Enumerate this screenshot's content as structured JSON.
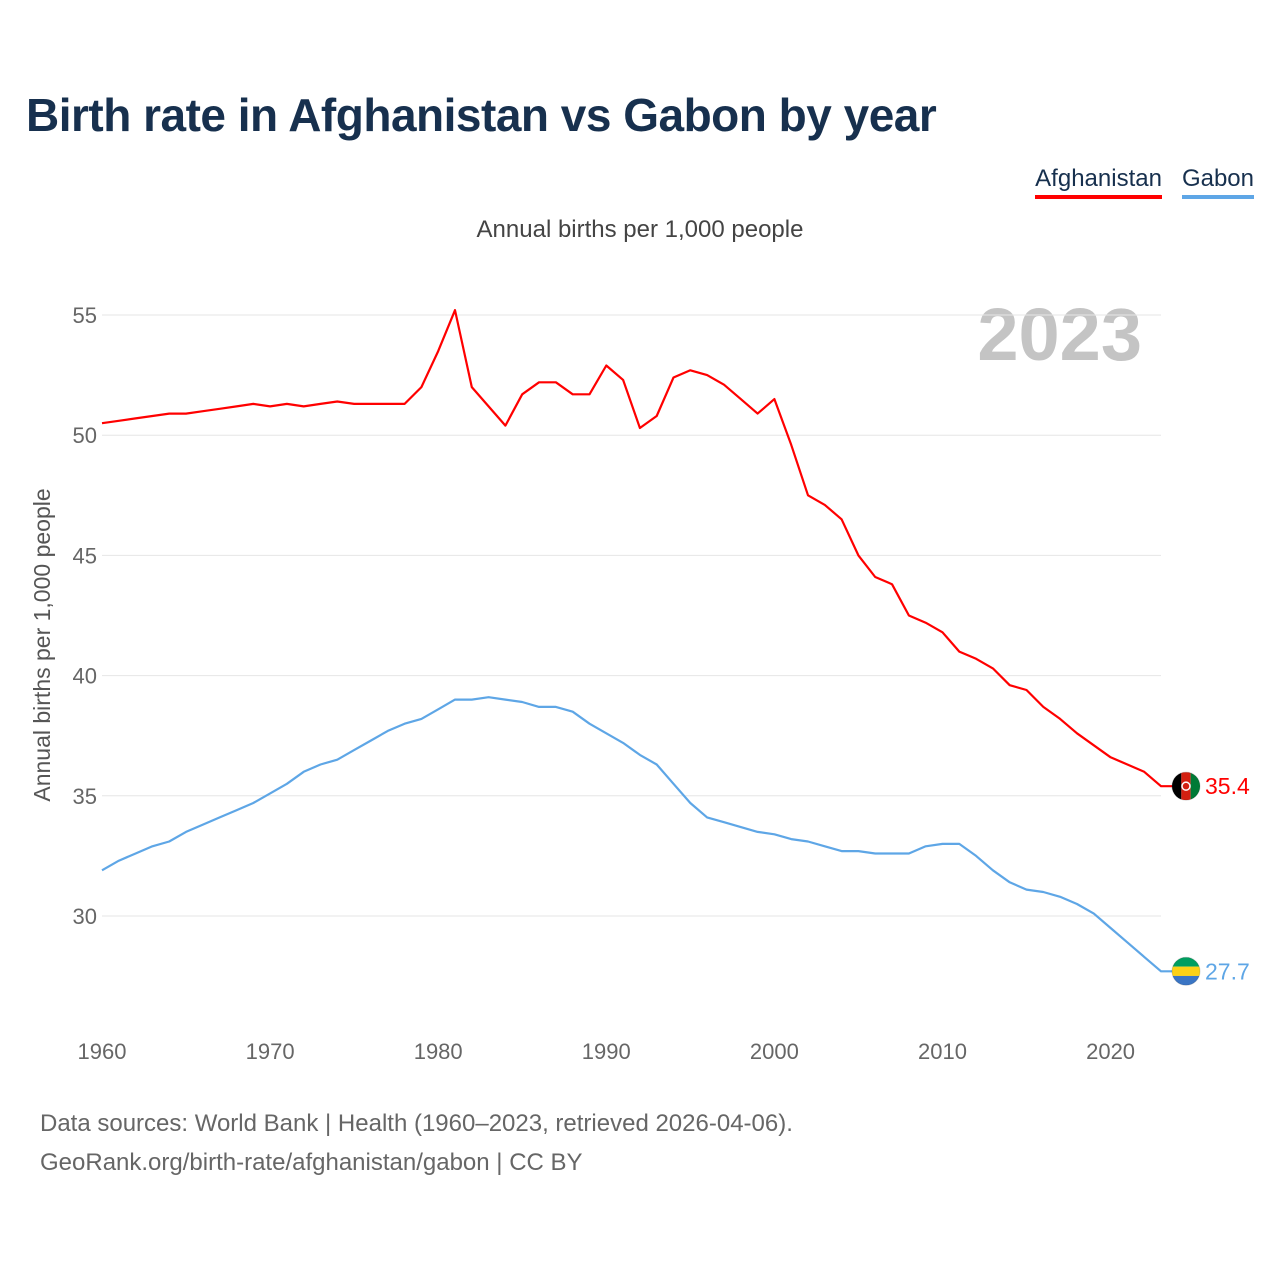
{
  "title": "Birth rate in Afghanistan vs Gabon by year",
  "subtitle": "Annual births per 1,000 people",
  "year_watermark": "2023",
  "legend": [
    {
      "name": "Afghanistan",
      "color": "#ff0000"
    },
    {
      "name": "Gabon",
      "color": "#5ea6e6"
    }
  ],
  "footer": {
    "line1": "Data sources: World Bank | Health (1960–2023, retrieved 2026-04-06).",
    "line2": "GeoRank.org/birth-rate/afghanistan/gabon | CC BY"
  },
  "chart_data": {
    "type": "line",
    "title": "Birth rate in Afghanistan vs Gabon by year",
    "ylabel": "Annual births per 1,000 people",
    "xlabel": "",
    "xlim": [
      1960,
      2023
    ],
    "ylim": [
      26.5,
      57
    ],
    "xticks": [
      1960,
      1970,
      1980,
      1990,
      2000,
      2010,
      2020
    ],
    "yticks": [
      30,
      35,
      40,
      45,
      50,
      55
    ],
    "grid": true,
    "x": [
      1960,
      1961,
      1962,
      1963,
      1964,
      1965,
      1966,
      1967,
      1968,
      1969,
      1970,
      1971,
      1972,
      1973,
      1974,
      1975,
      1976,
      1977,
      1978,
      1979,
      1980,
      1981,
      1982,
      1983,
      1984,
      1985,
      1986,
      1987,
      1988,
      1989,
      1990,
      1991,
      1992,
      1993,
      1994,
      1995,
      1996,
      1997,
      1998,
      1999,
      2000,
      2001,
      2002,
      2003,
      2004,
      2005,
      2006,
      2007,
      2008,
      2009,
      2010,
      2011,
      2012,
      2013,
      2014,
      2015,
      2016,
      2017,
      2018,
      2019,
      2020,
      2021,
      2022,
      2023
    ],
    "series": [
      {
        "name": "Afghanistan",
        "color": "#ff0000",
        "end_label": "35.4",
        "values": [
          50.5,
          50.6,
          50.7,
          50.8,
          50.9,
          50.9,
          51.0,
          51.1,
          51.2,
          51.3,
          51.2,
          51.3,
          51.2,
          51.3,
          51.4,
          51.3,
          51.3,
          51.3,
          51.3,
          52.0,
          53.5,
          55.2,
          52.0,
          51.2,
          50.4,
          51.7,
          52.2,
          52.2,
          51.7,
          51.7,
          52.9,
          52.3,
          50.3,
          50.8,
          52.4,
          52.7,
          52.5,
          52.1,
          51.5,
          50.9,
          51.5,
          49.6,
          47.5,
          47.1,
          46.5,
          45.0,
          44.1,
          43.8,
          42.5,
          42.2,
          41.8,
          41.0,
          40.7,
          40.3,
          39.6,
          39.4,
          38.7,
          38.2,
          37.6,
          37.1,
          36.6,
          36.3,
          36.0,
          35.4
        ]
      },
      {
        "name": "Gabon",
        "color": "#5ea6e6",
        "end_label": "27.7",
        "values": [
          31.9,
          32.3,
          32.6,
          32.9,
          33.1,
          33.5,
          33.8,
          34.1,
          34.4,
          34.7,
          35.1,
          35.5,
          36.0,
          36.3,
          36.5,
          36.9,
          37.3,
          37.7,
          38.0,
          38.2,
          38.6,
          39.0,
          39.0,
          39.1,
          39.0,
          38.9,
          38.7,
          38.7,
          38.5,
          38.0,
          37.6,
          37.2,
          36.7,
          36.3,
          35.5,
          34.7,
          34.1,
          33.9,
          33.7,
          33.5,
          33.4,
          33.2,
          33.1,
          32.9,
          32.7,
          32.7,
          32.6,
          32.6,
          32.6,
          32.9,
          33.0,
          33.0,
          32.5,
          31.9,
          31.4,
          31.1,
          31.0,
          30.8,
          30.5,
          30.1,
          29.5,
          28.9,
          28.3,
          27.7
        ]
      }
    ]
  }
}
